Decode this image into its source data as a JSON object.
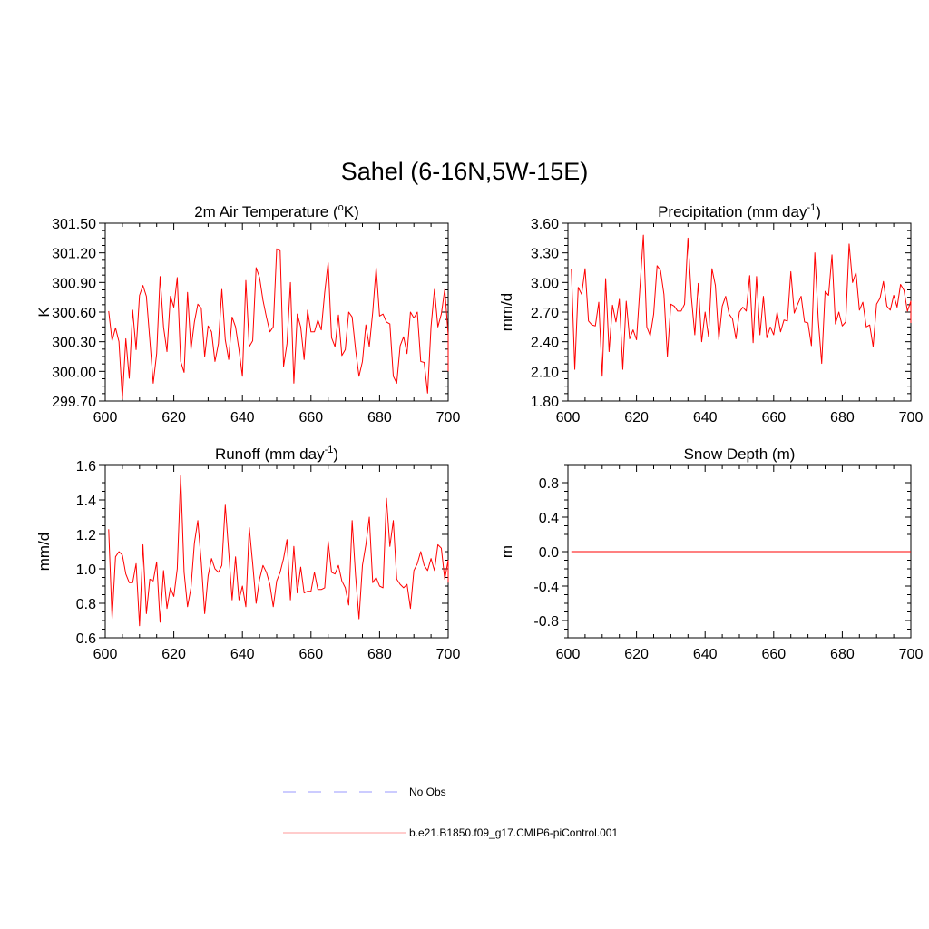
{
  "title": "Sahel (6-16N,5W-15E)",
  "colors": {
    "model": "#ff0000",
    "obs": "#9999ff",
    "axis": "#000000"
  },
  "legend": [
    {
      "label": "No Obs",
      "style": "dashed",
      "color": "#9999ff"
    },
    {
      "label": "b.e21.B1850.f09_g17.CMIP6-piControl.001",
      "style": "solid",
      "color": "#ff9999"
    }
  ],
  "chart_data": [
    {
      "type": "line",
      "title": "2m Air Temperature (°K)",
      "title_parts": {
        "pre": "2m Air Temperature (",
        "sup": "o",
        "post": "K)"
      },
      "xlabel": "",
      "ylabel": "K",
      "xlim": [
        600,
        700
      ],
      "ylim": [
        299.7,
        301.5
      ],
      "xticks": [
        "600",
        "620",
        "640",
        "660",
        "680",
        "700"
      ],
      "yticks": [
        "299.70",
        "300.00",
        "300.30",
        "300.60",
        "300.90",
        "301.20",
        "301.50"
      ],
      "series": [
        {
          "name": "b.e21.B1850.f09_g17.CMIP6-piControl.001",
          "x_start": 601,
          "x_step": 1,
          "values": [
            300.61,
            300.31,
            300.44,
            300.3,
            299.72,
            300.33,
            299.93,
            300.62,
            300.22,
            300.77,
            300.87,
            300.76,
            300.32,
            299.88,
            300.18,
            300.96,
            300.45,
            300.2,
            300.76,
            300.65,
            300.95,
            300.1,
            299.99,
            300.8,
            300.22,
            300.5,
            300.68,
            300.64,
            300.15,
            300.46,
            300.4,
            300.1,
            300.28,
            300.83,
            300.32,
            300.12,
            300.55,
            300.45,
            300.22,
            299.95,
            300.92,
            300.25,
            300.31,
            301.05,
            300.95,
            300.72,
            300.55,
            300.4,
            300.45,
            301.24,
            301.22,
            300.05,
            300.28,
            300.9,
            299.88,
            300.58,
            300.45,
            300.12,
            300.62,
            300.4,
            300.4,
            300.52,
            300.42,
            300.8,
            301.1,
            300.34,
            300.25,
            300.57,
            300.16,
            300.22,
            300.6,
            300.55,
            300.22,
            299.95,
            300.1,
            300.47,
            300.25,
            300.6,
            301.05,
            300.56,
            300.58,
            300.5,
            300.48,
            299.95,
            299.88,
            300.26,
            300.35,
            300.18,
            300.6,
            300.54,
            300.6,
            300.1,
            300.09,
            299.78,
            300.45,
            300.83,
            300.45,
            300.58,
            300.83,
            300.37,
            300.0
          ]
        }
      ]
    },
    {
      "type": "line",
      "title": "Precipitation (mm day-1)",
      "title_parts": {
        "pre": "Precipitation (mm day",
        "sup": "-1",
        "post": ")"
      },
      "xlabel": "",
      "ylabel": "mm/d",
      "xlim": [
        600,
        700
      ],
      "ylim": [
        1.8,
        3.6
      ],
      "xticks": [
        "600",
        "620",
        "640",
        "660",
        "680",
        "700"
      ],
      "yticks": [
        "1.80",
        "2.10",
        "2.40",
        "2.70",
        "3.00",
        "3.30",
        "3.60"
      ],
      "series": [
        {
          "name": "b.e21.B1850.f09_g17.CMIP6-piControl.001",
          "x_start": 601,
          "x_step": 1,
          "values": [
            3.14,
            2.12,
            2.95,
            2.88,
            3.14,
            2.61,
            2.57,
            2.56,
            2.8,
            2.05,
            3.04,
            2.3,
            2.77,
            2.6,
            2.83,
            2.12,
            2.81,
            2.43,
            2.52,
            2.42,
            2.95,
            3.48,
            2.55,
            2.46,
            2.68,
            3.17,
            3.12,
            2.88,
            2.25,
            2.78,
            2.76,
            2.71,
            2.71,
            2.78,
            3.45,
            2.85,
            2.47,
            2.99,
            2.4,
            2.7,
            2.45,
            3.14,
            2.97,
            2.42,
            2.76,
            2.86,
            2.68,
            2.63,
            2.43,
            2.7,
            2.75,
            2.71,
            3.07,
            2.39,
            3.06,
            2.47,
            2.86,
            2.44,
            2.55,
            2.47,
            2.7,
            2.5,
            2.62,
            2.61,
            3.11,
            2.69,
            2.78,
            2.86,
            2.6,
            2.59,
            2.36,
            3.3,
            2.62,
            2.18,
            2.91,
            2.87,
            3.28,
            2.58,
            2.7,
            2.56,
            2.6,
            3.39,
            3.0,
            3.1,
            2.72,
            2.8,
            2.55,
            2.57,
            2.35,
            2.78,
            2.84,
            3.01,
            2.76,
            2.72,
            2.87,
            2.75,
            2.98,
            2.92,
            2.71,
            2.81,
            2.59
          ]
        }
      ]
    },
    {
      "type": "line",
      "title": "Runoff (mm day-1)",
      "title_parts": {
        "pre": "Runoff (mm day",
        "sup": "-1",
        "post": ")"
      },
      "xlabel": "",
      "ylabel": "mm/d",
      "xlim": [
        600,
        700
      ],
      "ylim": [
        0.6,
        1.6
      ],
      "xticks": [
        "600",
        "620",
        "640",
        "660",
        "680",
        "700"
      ],
      "yticks": [
        "0.6",
        "0.8",
        "1.0",
        "1.2",
        "1.4",
        "1.6"
      ],
      "series": [
        {
          "name": "b.e21.B1850.f09_g17.CMIP6-piControl.001",
          "x_start": 601,
          "x_step": 1,
          "values": [
            1.23,
            0.71,
            1.07,
            1.1,
            1.08,
            0.97,
            0.92,
            0.92,
            1.03,
            0.67,
            1.14,
            0.74,
            0.94,
            0.93,
            1.04,
            0.69,
            0.99,
            0.77,
            0.89,
            0.84,
            1.0,
            1.54,
            0.98,
            0.78,
            0.89,
            1.15,
            1.28,
            1.04,
            0.74,
            0.96,
            1.06,
            1.0,
            0.98,
            1.02,
            1.37,
            1.1,
            0.82,
            1.07,
            0.82,
            0.9,
            0.78,
            1.24,
            1.03,
            0.8,
            0.94,
            1.02,
            0.98,
            0.91,
            0.78,
            0.93,
            0.98,
            1.06,
            1.17,
            0.82,
            1.13,
            0.86,
            1.01,
            0.86,
            0.87,
            0.87,
            0.98,
            0.88,
            0.88,
            0.89,
            1.16,
            0.98,
            0.97,
            1.02,
            0.93,
            0.89,
            0.79,
            1.28,
            0.96,
            0.71,
            1.02,
            1.14,
            1.3,
            0.92,
            0.95,
            0.9,
            0.89,
            1.41,
            1.13,
            1.28,
            0.94,
            0.91,
            0.89,
            0.91,
            0.77,
            0.99,
            1.03,
            1.1,
            1.02,
            0.99,
            1.06,
            0.99,
            1.14,
            1.12,
            0.94,
            1.05,
            0.92
          ]
        }
      ]
    },
    {
      "type": "line",
      "title": "Snow Depth (m)",
      "title_parts": {
        "pre": "Snow Depth (m)",
        "sup": "",
        "post": ""
      },
      "xlabel": "",
      "ylabel": "m",
      "xlim": [
        600,
        700
      ],
      "ylim": [
        -1.0,
        1.0
      ],
      "xticks": [
        "600",
        "620",
        "640",
        "660",
        "680",
        "700"
      ],
      "yticks": [
        "-0.8",
        "-0.4",
        "0.0",
        "0.4",
        "0.8"
      ],
      "ytick_values": [
        -0.8,
        -0.4,
        0.0,
        0.4,
        0.8
      ],
      "series": [
        {
          "name": "b.e21.B1850.f09_g17.CMIP6-piControl.001",
          "x_start": 601,
          "x_step": 100,
          "values": [
            0.0,
            0.0
          ]
        }
      ]
    }
  ]
}
